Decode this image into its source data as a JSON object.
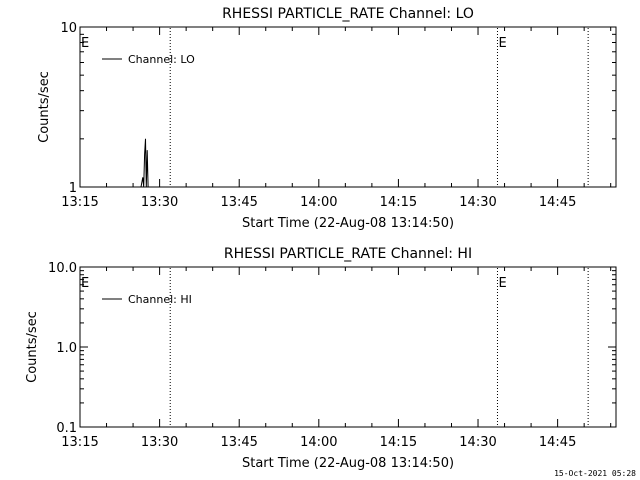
{
  "footer": {
    "timestamp": "15-Oct-2021 05:28"
  },
  "chart_data": [
    {
      "type": "line",
      "title": "RHESSI PARTICLE_RATE Channel: LO",
      "xlabel": "Start Time (22-Aug-08 13:14:50)",
      "ylabel": "Counts/sec",
      "yscale": "log",
      "ylim": [
        1,
        10
      ],
      "xlim": [
        "13:15",
        "14:56"
      ],
      "xticks": [
        "13:15",
        "13:30",
        "13:45",
        "14:00",
        "14:15",
        "14:30",
        "14:45"
      ],
      "yticks": [
        {
          "value": 1,
          "label": "1"
        },
        {
          "value": 10,
          "label": "10"
        }
      ],
      "legend": {
        "position": "top-left",
        "entry": "Channel: LO"
      },
      "series": [
        {
          "name": "Channel: LO",
          "x": [
            "13:26:30",
            "13:26:50",
            "13:27:00",
            "13:27:10",
            "13:27:20",
            "13:27:30",
            "13:27:40",
            "13:27:50",
            "13:28:00"
          ],
          "y": [
            1,
            1.15,
            1,
            1.6,
            2.0,
            1.0,
            1.7,
            1.0,
            1
          ]
        }
      ],
      "vlines": [
        {
          "x": "13:32:00",
          "label": "",
          "style": "dotted"
        },
        {
          "x": "14:33:40",
          "label": "E",
          "style": "dotted"
        },
        {
          "x": "14:50:45",
          "label": "",
          "style": "dotted"
        }
      ],
      "edge_markers": [
        {
          "x": "13:15",
          "label": "E"
        }
      ],
      "grid": false
    },
    {
      "type": "line",
      "title": "RHESSI PARTICLE_RATE Channel: HI",
      "xlabel": "Start Time (22-Aug-08 13:14:50)",
      "ylabel": "Counts/sec",
      "yscale": "log",
      "ylim": [
        0.1,
        10
      ],
      "xlim": [
        "13:15",
        "14:56"
      ],
      "xticks": [
        "13:15",
        "13:30",
        "13:45",
        "14:00",
        "14:15",
        "14:30",
        "14:45"
      ],
      "yticks": [
        {
          "value": 0.1,
          "label": "0.1"
        },
        {
          "value": 1,
          "label": "1.0"
        },
        {
          "value": 10,
          "label": "10.0"
        }
      ],
      "legend": {
        "position": "top-left",
        "entry": "Channel: HI"
      },
      "series": [
        {
          "name": "Channel: HI",
          "x": [],
          "y": []
        }
      ],
      "vlines": [
        {
          "x": "13:32:00",
          "label": "",
          "style": "dotted"
        },
        {
          "x": "14:33:40",
          "label": "E",
          "style": "dotted"
        },
        {
          "x": "14:50:45",
          "label": "",
          "style": "dotted"
        }
      ],
      "edge_markers": [
        {
          "x": "13:15",
          "label": "E"
        }
      ],
      "grid": false
    }
  ]
}
